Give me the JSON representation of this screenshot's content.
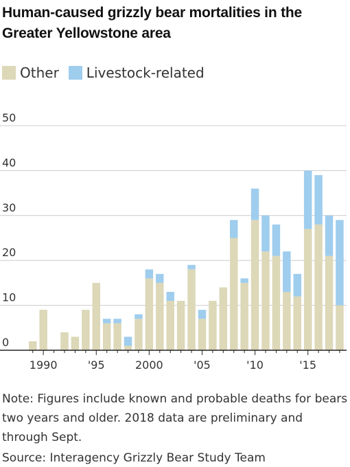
{
  "title": "Human-caused grizzly bear mortalities in the Greater Yellowstone area",
  "note": "Note: Figures include known and probable deaths for bears two years and older. 2018 data are preliminary and through Sept.",
  "source": "Source: Interagency Grizzly Bear Study Team",
  "legend": [
    {
      "label": "Other",
      "color": "#dcd8b8"
    },
    {
      "label": "Livestock-related",
      "color": "#9fcdee"
    }
  ],
  "chart_data": {
    "type": "bar",
    "stacked": true,
    "x": [
      1989,
      1990,
      1991,
      1992,
      1993,
      1994,
      1995,
      1996,
      1997,
      1998,
      1999,
      2000,
      2001,
      2002,
      2003,
      2004,
      2005,
      2006,
      2007,
      2008,
      2009,
      2010,
      2011,
      2012,
      2013,
      2014,
      2015,
      2016,
      2017,
      2018
    ],
    "series": [
      {
        "name": "Other",
        "color": "#dcd8b8",
        "values": [
          2,
          9,
          0,
          4,
          3,
          9,
          15,
          6,
          6,
          1,
          7,
          16,
          15,
          11,
          11,
          18,
          7,
          11,
          14,
          25,
          15,
          29,
          22,
          21,
          13,
          12,
          27,
          28,
          21,
          10
        ]
      },
      {
        "name": "Livestock-related",
        "color": "#9fcdee",
        "values": [
          0,
          0,
          0,
          0,
          0,
          0,
          0,
          1,
          1,
          2,
          1,
          2,
          2,
          2,
          0,
          1,
          2,
          0,
          0,
          4,
          1,
          7,
          8,
          7,
          9,
          5,
          13,
          11,
          9,
          19
        ]
      }
    ],
    "ylim": [
      0,
      50
    ],
    "yticks": [
      0,
      10,
      20,
      30,
      40,
      50
    ],
    "ytick_labels": [
      "0",
      "10",
      "20",
      "30",
      "40",
      "50"
    ],
    "xticks": [
      1990,
      1995,
      2000,
      2005,
      2010,
      2015
    ],
    "xtick_labels": [
      "1990",
      "'95",
      "2000",
      "'05",
      "'10",
      "'15"
    ],
    "grid": true,
    "legend_position": "top-left"
  }
}
